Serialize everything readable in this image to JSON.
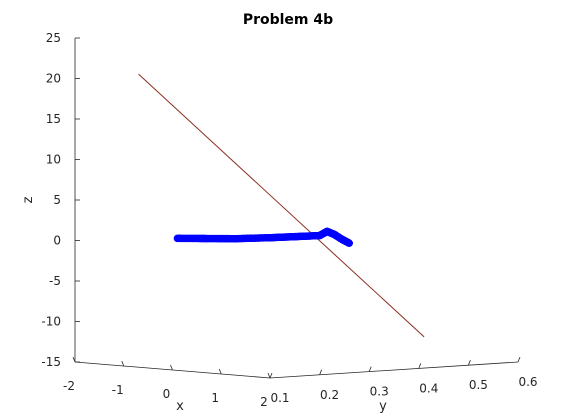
{
  "chart_data": {
    "type": "scatter",
    "projection": "3d",
    "title": "Problem 4b",
    "xlabel": "x",
    "ylabel": "y",
    "zlabel": "z",
    "xlim": [
      -2,
      2
    ],
    "ylim": [
      0.1,
      0.6
    ],
    "zlim": [
      -15,
      25
    ],
    "x_ticks": [
      "-2",
      "-1",
      "0",
      "1",
      "2"
    ],
    "y_ticks": [
      "0.1",
      "0.2",
      "0.3",
      "0.4",
      "0.5",
      "0.6"
    ],
    "z_ticks": [
      "25",
      "20",
      "15",
      "10",
      "5",
      "0",
      "-5",
      "-10",
      "-15"
    ],
    "grid": false,
    "series": [
      {
        "kind": "line",
        "color": "#8b2d1f",
        "points": [
          {
            "x": -0.9,
            "y": 0.12,
            "z": 21
          },
          {
            "x": 1.6,
            "y": 0.45,
            "z": -11.5
          }
        ]
      },
      {
        "kind": "markers",
        "marker": "circle",
        "color": "#0000ff",
        "points": [
          {
            "x": 0.1,
            "y": 0.1,
            "z": 1.3
          },
          {
            "x": 0.5,
            "y": 0.12,
            "z": 1.4
          },
          {
            "x": 0.9,
            "y": 0.14,
            "z": 1.5
          },
          {
            "x": 1.3,
            "y": 0.17,
            "z": 1.7
          },
          {
            "x": 1.6,
            "y": 0.19,
            "z": 1.9
          },
          {
            "x": 1.9,
            "y": 0.21,
            "z": 2.1
          },
          {
            "x": 1.95,
            "y": 0.22,
            "z": 2.6
          },
          {
            "x": 2.0,
            "y": 0.23,
            "z": 2.2
          },
          {
            "x": 2.05,
            "y": 0.24,
            "z": 1.6
          },
          {
            "x": 2.1,
            "y": 0.25,
            "z": 1.1
          }
        ]
      }
    ]
  }
}
